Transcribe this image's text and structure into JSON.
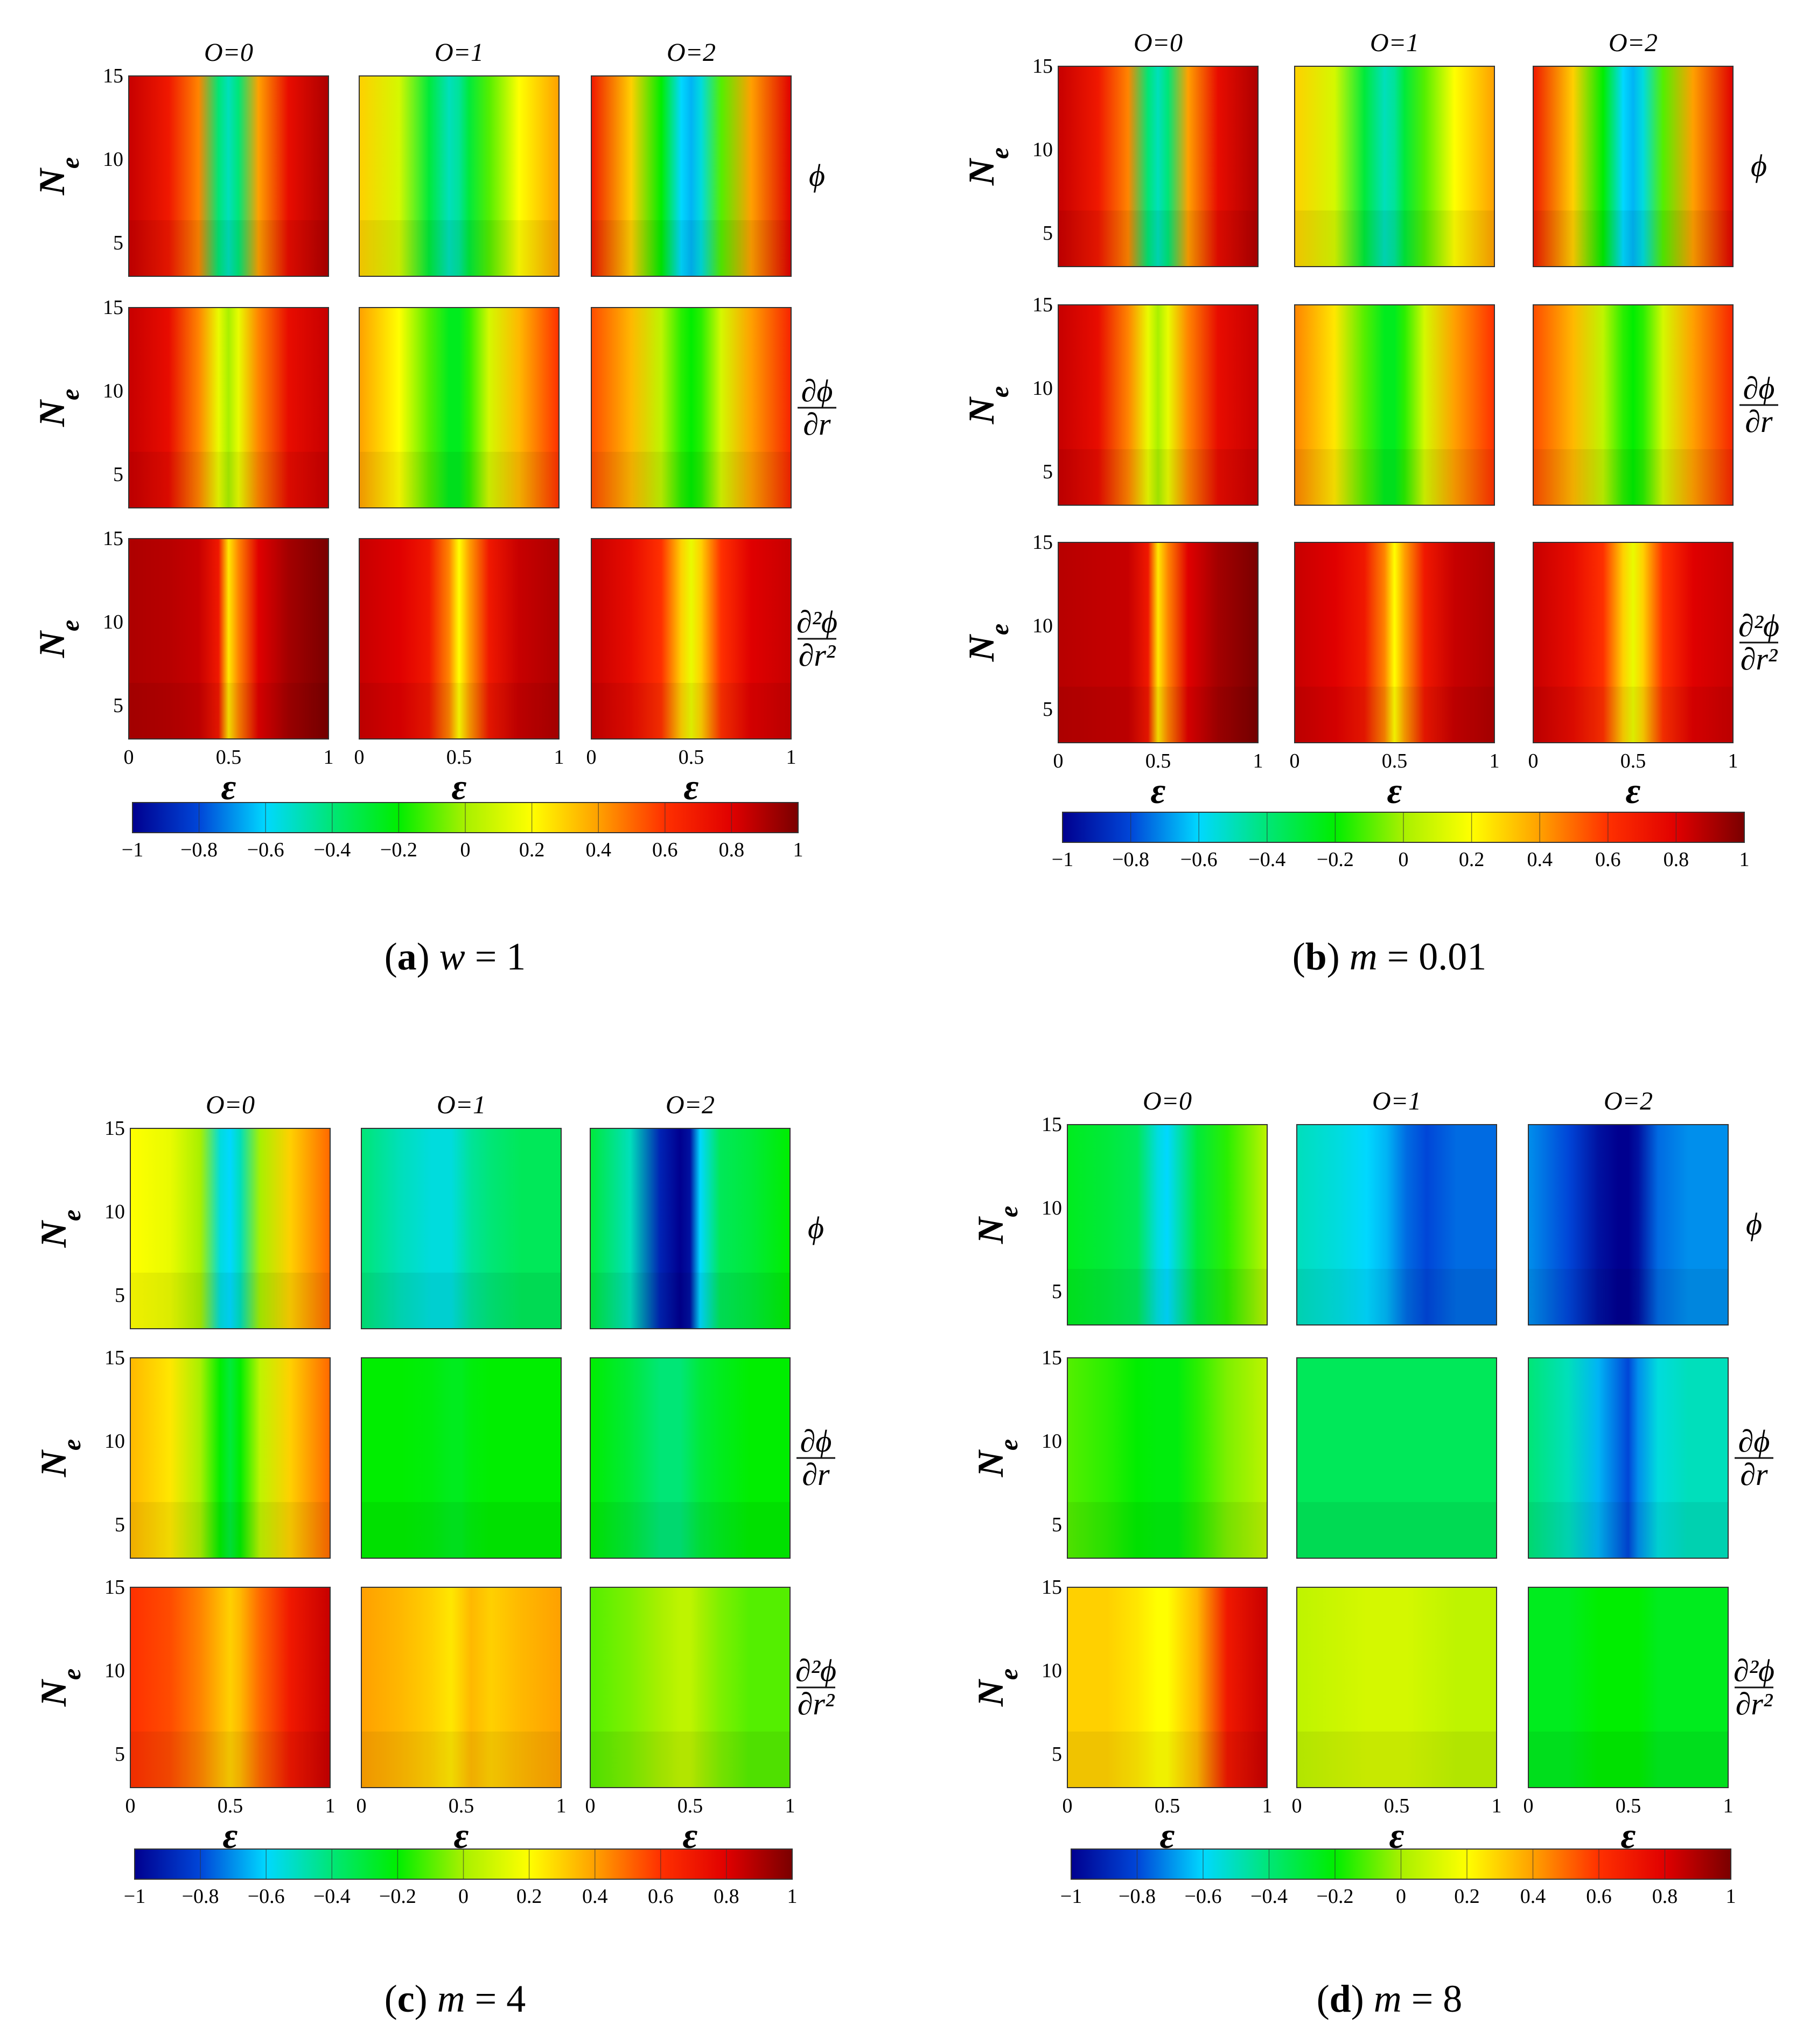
{
  "colorbar": {
    "min": -1,
    "max": 1,
    "ticks": [
      "−1",
      "−0.8",
      "−0.6",
      "−0.4",
      "−0.2",
      "0",
      "0.2",
      "0.4",
      "0.6",
      "0.8",
      "1"
    ],
    "stops": [
      "#00008f",
      "#0046d8",
      "#00d8ff",
      "#00e676",
      "#00ee00",
      "#a8f000",
      "#ffff00",
      "#ffa000",
      "#ff3000",
      "#e00000",
      "#7a0000"
    ]
  },
  "chart_data": [
    {
      "type": "heatmap",
      "panel": "a",
      "caption": {
        "letter": "a",
        "param": "w",
        "value": "1"
      },
      "column_titles": [
        "O=0",
        "O=1",
        "O=2"
      ],
      "row_labels": [
        "ϕ",
        "∂ϕ/∂r",
        "∂²ϕ/∂r²"
      ],
      "xlabel": "ε",
      "ylabel": "Ne",
      "xlim": [
        0,
        1
      ],
      "ylim": [
        3,
        15
      ],
      "x_ticks": [
        "0",
        "0.5",
        "1"
      ],
      "y_ticks": [
        "5",
        "10",
        "15"
      ],
      "x_samples": [
        0.0,
        0.2,
        0.35,
        0.45,
        0.5,
        0.55,
        0.65,
        0.8,
        1.0
      ],
      "grid": [
        [
          [
            0.85,
            0.7,
            0.45,
            -0.4,
            -0.5,
            -0.4,
            0.4,
            0.75,
            0.9
          ],
          [
            0.3,
            0.1,
            -0.3,
            -0.5,
            -0.45,
            -0.3,
            -0.1,
            0.2,
            0.4
          ],
          [
            0.7,
            0.3,
            -0.2,
            -0.6,
            -0.65,
            -0.55,
            -0.1,
            0.4,
            0.8
          ]
        ],
        [
          [
            0.85,
            0.75,
            0.45,
            0.15,
            0.0,
            0.15,
            0.45,
            0.75,
            0.85
          ],
          [
            0.4,
            0.2,
            -0.1,
            -0.25,
            -0.25,
            -0.15,
            0.1,
            0.35,
            0.6
          ],
          [
            0.55,
            0.35,
            0.05,
            -0.15,
            -0.2,
            -0.15,
            0.1,
            0.4,
            0.65
          ]
        ],
        [
          [
            0.9,
            0.88,
            0.85,
            0.7,
            0.25,
            0.45,
            0.8,
            0.92,
            1.0
          ],
          [
            0.85,
            0.8,
            0.7,
            0.45,
            0.2,
            0.4,
            0.7,
            0.85,
            0.9
          ],
          [
            0.85,
            0.75,
            0.6,
            0.3,
            0.15,
            0.3,
            0.6,
            0.8,
            0.85
          ]
        ]
      ],
      "colorbar_range": [
        -1,
        1
      ]
    },
    {
      "type": "heatmap",
      "panel": "b",
      "caption": {
        "letter": "b",
        "param": "m",
        "value": "0.01"
      },
      "column_titles": [
        "O=0",
        "O=1",
        "O=2"
      ],
      "row_labels": [
        "ϕ",
        "∂ϕ/∂r",
        "∂²ϕ/∂r²"
      ],
      "xlabel": "ε",
      "ylabel": "Ne",
      "xlim": [
        0,
        1
      ],
      "ylim": [
        3,
        15
      ],
      "x_ticks": [
        "0",
        "0.5",
        "1"
      ],
      "y_ticks": [
        "5",
        "10",
        "15"
      ],
      "x_samples": [
        0.0,
        0.2,
        0.35,
        0.45,
        0.5,
        0.55,
        0.65,
        0.8,
        1.0
      ],
      "grid": [
        [
          [
            0.85,
            0.7,
            0.45,
            -0.4,
            -0.5,
            -0.4,
            0.4,
            0.75,
            0.9
          ],
          [
            0.3,
            0.1,
            -0.3,
            -0.5,
            -0.45,
            -0.3,
            -0.1,
            0.2,
            0.4
          ],
          [
            0.7,
            0.3,
            -0.2,
            -0.6,
            -0.65,
            -0.55,
            -0.1,
            0.4,
            0.8
          ]
        ],
        [
          [
            0.85,
            0.75,
            0.45,
            0.15,
            0.0,
            0.15,
            0.45,
            0.75,
            0.85
          ],
          [
            0.45,
            0.25,
            -0.1,
            -0.25,
            -0.25,
            -0.15,
            0.1,
            0.4,
            0.6
          ],
          [
            0.55,
            0.35,
            0.05,
            -0.15,
            -0.2,
            -0.15,
            0.1,
            0.4,
            0.65
          ]
        ],
        [
          [
            0.88,
            0.86,
            0.85,
            0.7,
            0.25,
            0.45,
            0.8,
            0.92,
            1.0
          ],
          [
            0.85,
            0.8,
            0.7,
            0.45,
            0.2,
            0.4,
            0.7,
            0.85,
            0.9
          ],
          [
            0.85,
            0.75,
            0.6,
            0.3,
            0.15,
            0.3,
            0.6,
            0.8,
            0.85
          ]
        ]
      ],
      "colorbar_range": [
        -1,
        1
      ]
    },
    {
      "type": "heatmap",
      "panel": "c",
      "caption": {
        "letter": "c",
        "param": "m",
        "value": "4"
      },
      "column_titles": [
        "O=0",
        "O=1",
        "O=2"
      ],
      "row_labels": [
        "ϕ",
        "∂ϕ/∂r",
        "∂²ϕ/∂r²"
      ],
      "xlabel": "ε",
      "ylabel": "Ne",
      "xlim": [
        0,
        1
      ],
      "ylim": [
        3,
        15
      ],
      "x_ticks": [
        "0",
        "0.5",
        "1"
      ],
      "y_ticks": [
        "5",
        "10",
        "15"
      ],
      "x_samples": [
        0.0,
        0.2,
        0.35,
        0.45,
        0.5,
        0.55,
        0.65,
        0.8,
        1.0
      ],
      "grid": [
        [
          [
            0.2,
            0.15,
            0.0,
            -0.55,
            -0.6,
            -0.5,
            0.0,
            0.3,
            0.5
          ],
          [
            -0.4,
            -0.5,
            -0.55,
            -0.55,
            -0.5,
            -0.45,
            -0.4,
            -0.35,
            -0.35
          ],
          [
            -0.3,
            -0.5,
            -0.9,
            -1.0,
            -0.95,
            -0.6,
            -0.35,
            -0.3,
            -0.2
          ]
        ],
        [
          [
            0.35,
            0.25,
            0.0,
            -0.2,
            -0.3,
            -0.2,
            0.05,
            0.3,
            0.5
          ],
          [
            -0.2,
            -0.2,
            -0.22,
            -0.25,
            -0.25,
            -0.22,
            -0.2,
            -0.2,
            -0.2
          ],
          [
            -0.2,
            -0.3,
            -0.4,
            -0.4,
            -0.35,
            -0.3,
            -0.25,
            -0.2,
            -0.2
          ]
        ],
        [
          [
            0.6,
            0.55,
            0.45,
            0.35,
            0.3,
            0.35,
            0.5,
            0.7,
            0.85
          ],
          [
            0.4,
            0.35,
            0.3,
            0.25,
            0.3,
            0.35,
            0.3,
            0.35,
            0.4
          ],
          [
            -0.1,
            -0.05,
            0.0,
            0.05,
            0.05,
            0.0,
            -0.05,
            -0.1,
            -0.1
          ]
        ]
      ],
      "colorbar_range": [
        -1,
        1
      ]
    },
    {
      "type": "heatmap",
      "panel": "d",
      "caption": {
        "letter": "d",
        "param": "m",
        "value": "8"
      },
      "column_titles": [
        "O=0",
        "O=1",
        "O=2"
      ],
      "row_labels": [
        "ϕ",
        "∂ϕ/∂r",
        "∂²ϕ/∂r²"
      ],
      "xlabel": "ε",
      "ylabel": "Ne",
      "xlim": [
        0,
        1
      ],
      "ylim": [
        3,
        15
      ],
      "x_ticks": [
        "0",
        "0.5",
        "1"
      ],
      "y_ticks": [
        "5",
        "10",
        "15"
      ],
      "x_samples": [
        0.0,
        0.2,
        0.35,
        0.45,
        0.5,
        0.55,
        0.65,
        0.8,
        1.0
      ],
      "grid": [
        [
          [
            -0.25,
            -0.3,
            -0.35,
            -0.55,
            -0.6,
            -0.5,
            -0.3,
            -0.15,
            0.05
          ],
          [
            -0.5,
            -0.55,
            -0.6,
            -0.65,
            -0.7,
            -0.75,
            -0.8,
            -0.75,
            -0.75
          ],
          [
            -0.7,
            -0.8,
            -0.95,
            -1.0,
            -1.0,
            -0.95,
            -0.75,
            -0.7,
            -0.7
          ]
        ],
        [
          [
            -0.1,
            -0.15,
            -0.2,
            -0.22,
            -0.22,
            -0.22,
            -0.15,
            -0.05,
            0.05
          ],
          [
            -0.35,
            -0.35,
            -0.35,
            -0.35,
            -0.35,
            -0.35,
            -0.35,
            -0.35,
            -0.35
          ],
          [
            -0.4,
            -0.5,
            -0.65,
            -0.75,
            -0.8,
            -0.7,
            -0.55,
            -0.5,
            -0.5
          ]
        ],
        [
          [
            0.3,
            0.3,
            0.25,
            0.2,
            0.2,
            0.25,
            0.35,
            0.7,
            0.85
          ],
          [
            0.05,
            0.08,
            0.1,
            0.1,
            0.1,
            0.1,
            0.08,
            0.05,
            0.05
          ],
          [
            -0.25,
            -0.25,
            -0.2,
            -0.2,
            -0.2,
            -0.2,
            -0.25,
            -0.25,
            -0.25
          ]
        ]
      ],
      "colorbar_range": [
        -1,
        1
      ]
    }
  ]
}
